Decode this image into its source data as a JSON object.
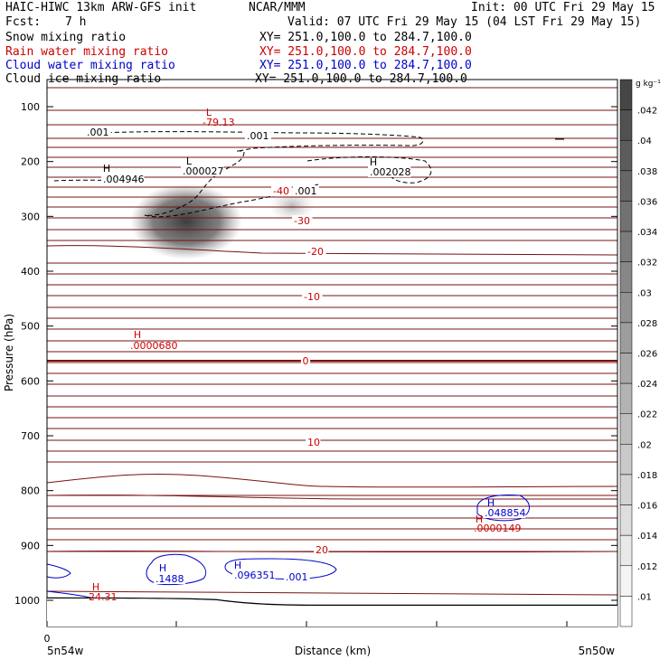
{
  "header": {
    "title_left": "HAIC-HIWC 13km ARW-GFS init",
    "org": "NCAR/MMM",
    "init": "Init: 00 UTC Fri 29 May 15",
    "fcst_label": "Fcst:",
    "fcst_value": "7 h",
    "valid": "Valid: 07 UTC Fri 29 May 15 (04 LST Fri 29 May 15)",
    "fields": [
      {
        "name": "Snow mixing ratio",
        "xy": "XY= 251.0,100.0 to 284.7,100.0",
        "color": "#000000"
      },
      {
        "name": "Rain water mixing ratio",
        "xy": "XY= 251.0,100.0 to 284.7,100.0",
        "color": "#cc0000"
      },
      {
        "name": "Cloud water mixing ratio",
        "xy": "XY= 251.0,100.0 to 284.7,100.0",
        "color": "#0000cc"
      },
      {
        "name": "Cloud ice mixing ratio",
        "xy": "XY= 251.0,100.0 to 284.7,100.0",
        "color": "#000000"
      }
    ]
  },
  "chart_data": {
    "type": "cross-section",
    "ylabel": "Pressure (hPa)",
    "xlabel": "Distance (km)",
    "y_ticks": [
      100,
      200,
      300,
      400,
      500,
      600,
      700,
      800,
      900,
      1000
    ],
    "ylim": [
      1010,
      50
    ],
    "x_tick_label": "0",
    "x_left_label": "5n54w",
    "x_right_label": "5n50w",
    "colorbar": {
      "unit": "g kg⁻¹",
      "levels": [
        ".042",
        ".04",
        ".038",
        ".036",
        ".034",
        ".032",
        ".03",
        ".028",
        ".026",
        ".024",
        ".022",
        ".02",
        ".018",
        ".016",
        ".014",
        ".012",
        ".01"
      ]
    },
    "temperature_labels": [
      "-79.13",
      "-40",
      "-30",
      "-20",
      "-10",
      "0",
      "10",
      "20",
      "24.31"
    ],
    "snow_labels": [
      ".001",
      ".001",
      ".004946",
      ".000027",
      ".002028",
      ".001"
    ],
    "snow_extrema": [
      "H",
      "L",
      "H"
    ],
    "cloud_water_labels": [
      ".1488",
      ".096351",
      ".001",
      ".048854"
    ],
    "cloud_water_extrema": [
      "H",
      "H",
      "H"
    ],
    "rain_labels": [
      ".0000680",
      ".0000149"
    ],
    "rain_extrema": [
      "H",
      "H"
    ],
    "temp_extrema": [
      "L",
      "H"
    ]
  }
}
